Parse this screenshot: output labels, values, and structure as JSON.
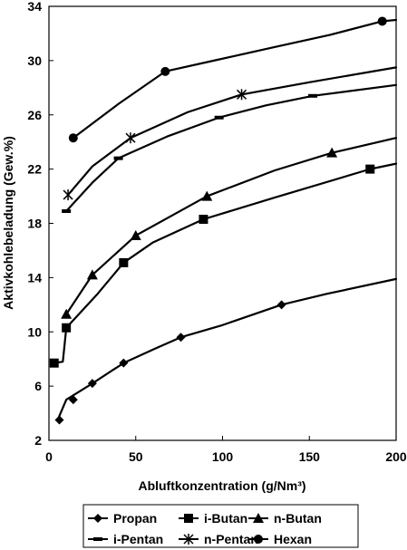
{
  "chart_data": {
    "type": "line",
    "title": "",
    "xlabel": "Abluftkonzentration (g/Nm³)",
    "ylabel": "Aktivkohlebeladung (Gew.%)",
    "xlim": [
      0,
      200
    ],
    "ylim": [
      2,
      34
    ],
    "xticks": [
      0,
      50,
      100,
      150,
      200
    ],
    "yticks": [
      2,
      6,
      10,
      14,
      18,
      22,
      26,
      30,
      34
    ],
    "grid": false,
    "legend_position": "bottom",
    "series": [
      {
        "name": "Propan",
        "marker": "diamond",
        "line_x": [
          5,
          10,
          25,
          43,
          60,
          76,
          100,
          134,
          160,
          200
        ],
        "line_y": [
          3.5,
          5.0,
          6.2,
          7.7,
          8.7,
          9.6,
          10.5,
          12.0,
          12.8,
          13.9
        ],
        "marker_x": [
          6,
          14,
          25,
          43,
          76,
          134
        ],
        "marker_y": [
          3.5,
          5.0,
          6.2,
          7.7,
          9.6,
          12.0
        ]
      },
      {
        "name": "i-Butan",
        "marker": "square",
        "line_x": [
          3,
          8,
          10,
          28,
          43,
          60,
          89,
          130,
          185,
          200
        ],
        "line_y": [
          7.7,
          7.8,
          10.3,
          12.8,
          15.1,
          16.6,
          18.3,
          19.9,
          22.0,
          22.4
        ],
        "marker_x": [
          3,
          10,
          43,
          89,
          185
        ],
        "marker_y": [
          7.7,
          10.3,
          15.1,
          18.3,
          22.0
        ]
      },
      {
        "name": "n-Butan",
        "marker": "triangle",
        "line_x": [
          10,
          25,
          50,
          91,
          130,
          163,
          200
        ],
        "line_y": [
          11.3,
          14.2,
          17.1,
          20.0,
          21.9,
          23.2,
          24.3
        ],
        "marker_x": [
          10,
          25,
          50,
          91,
          163
        ],
        "marker_y": [
          11.3,
          14.2,
          17.1,
          20.0,
          23.2
        ]
      },
      {
        "name": "i-Pentan",
        "marker": "dash",
        "line_x": [
          10,
          25,
          40,
          68,
          98,
          125,
          152,
          200
        ],
        "line_y": [
          18.9,
          21.0,
          22.8,
          24.4,
          25.8,
          26.7,
          27.4,
          28.2
        ],
        "marker_x": [
          10,
          40,
          98,
          152
        ],
        "marker_y": [
          18.9,
          22.8,
          25.8,
          27.4
        ]
      },
      {
        "name": "n-Pentan",
        "marker": "star",
        "line_x": [
          11,
          25,
          47,
          80,
          111,
          150,
          200
        ],
        "line_y": [
          20.1,
          22.2,
          24.3,
          26.2,
          27.5,
          28.4,
          29.5
        ],
        "marker_x": [
          11,
          47,
          111
        ],
        "marker_y": [
          20.1,
          24.3,
          27.5
        ]
      },
      {
        "name": "Hexan",
        "marker": "circle",
        "line_x": [
          14,
          40,
          67,
          95,
          130,
          162,
          192,
          200
        ],
        "line_y": [
          24.3,
          26.8,
          29.2,
          30.0,
          31.0,
          31.9,
          32.9,
          33.0
        ],
        "marker_x": [
          14,
          67,
          192
        ],
        "marker_y": [
          24.3,
          29.2,
          32.9
        ]
      }
    ]
  }
}
